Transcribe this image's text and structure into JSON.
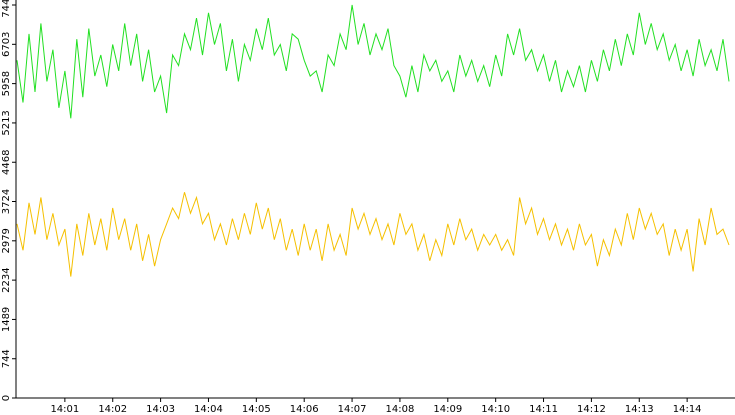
{
  "chart_data": {
    "type": "line",
    "x": [
      0,
      0.125,
      0.25,
      0.375,
      0.5,
      0.625,
      0.75,
      0.875,
      1,
      1.125,
      1.25,
      1.375,
      1.5,
      1.625,
      1.75,
      1.875,
      2,
      2.125,
      2.25,
      2.375,
      2.5,
      2.625,
      2.75,
      2.875,
      3,
      3.125,
      3.25,
      3.375,
      3.5,
      3.625,
      3.75,
      3.875,
      4,
      4.125,
      4.25,
      4.375,
      4.5,
      4.625,
      4.75,
      4.875,
      5,
      5.125,
      5.25,
      5.375,
      5.5,
      5.625,
      5.75,
      5.875,
      6,
      6.125,
      6.25,
      6.375,
      6.5,
      6.625,
      6.75,
      6.875,
      7,
      7.125,
      7.25,
      7.375,
      7.5,
      7.625,
      7.75,
      7.875,
      8,
      8.125,
      8.25,
      8.375,
      8.5,
      8.625,
      8.75,
      8.875,
      9,
      9.125,
      9.25,
      9.375,
      9.5,
      9.625,
      9.75,
      9.875,
      10,
      10.125,
      10.25,
      10.375,
      10.5,
      10.625,
      10.75,
      10.875,
      11,
      11.125,
      11.25,
      11.375,
      11.5,
      11.625,
      11.75,
      11.875,
      12,
      12.125,
      12.25,
      12.375,
      12.5,
      12.625,
      12.75,
      12.875,
      13,
      13.125,
      13.25,
      13.375,
      13.5,
      13.625,
      13.75,
      13.875,
      14,
      14.125,
      14.25,
      14.375,
      14.5,
      14.625,
      14.75,
      14.875
    ],
    "series": [
      {
        "color": "#22e022",
        "values": [
          6400,
          5600,
          6900,
          5800,
          7100,
          6000,
          6600,
          5500,
          6200,
          5300,
          6800,
          5700,
          7000,
          6100,
          6500,
          5900,
          6700,
          6200,
          7100,
          6300,
          6900,
          6000,
          6600,
          5800,
          6100,
          5400,
          6500,
          6300,
          6900,
          6600,
          7200,
          6500,
          7300,
          6700,
          7100,
          6200,
          6800,
          6000,
          6700,
          6400,
          7000,
          6600,
          7200,
          6500,
          6700,
          6200,
          6900,
          6800,
          6400,
          6100,
          6200,
          5800,
          6500,
          6300,
          6900,
          6600,
          7448,
          6700,
          7100,
          6500,
          6900,
          6600,
          7000,
          6300,
          6100,
          5700,
          6300,
          5800,
          6500,
          6200,
          6400,
          6000,
          6200,
          5800,
          6500,
          6100,
          6400,
          6000,
          6300,
          5900,
          6500,
          6100,
          6900,
          6500,
          7000,
          6400,
          6600,
          6200,
          6500,
          6000,
          6400,
          5800,
          6200,
          5900,
          6300,
          5800,
          6400,
          6000,
          6600,
          6200,
          6800,
          6300,
          6900,
          6500,
          7300,
          6700,
          7100,
          6600,
          6900,
          6400,
          6700,
          6200,
          6600,
          6100,
          6800,
          6300,
          6600,
          6200,
          6800,
          6000
        ]
      },
      {
        "color": "#f5c000",
        "values": [
          3300,
          2800,
          3700,
          3100,
          3800,
          3000,
          3500,
          2900,
          3200,
          2300,
          3300,
          2700,
          3500,
          2900,
          3400,
          2800,
          3600,
          3000,
          3400,
          2800,
          3300,
          2600,
          3100,
          2500,
          3000,
          3300,
          3600,
          3400,
          3900,
          3500,
          3800,
          3300,
          3500,
          3000,
          3300,
          2900,
          3400,
          3000,
          3500,
          3100,
          3700,
          3200,
          3600,
          3000,
          3400,
          2800,
          3200,
          2700,
          3300,
          2800,
          3200,
          2600,
          3300,
          2800,
          3100,
          2700,
          3600,
          3200,
          3500,
          3100,
          3400,
          3000,
          3300,
          2900,
          3500,
          3100,
          3300,
          2800,
          3100,
          2600,
          3000,
          2700,
          3300,
          2900,
          3400,
          3000,
          3200,
          2800,
          3100,
          2900,
          3100,
          2800,
          3000,
          2700,
          3800,
          3300,
          3600,
          3100,
          3400,
          3000,
          3300,
          2900,
          3200,
          2800,
          3300,
          2900,
          3100,
          2500,
          3000,
          2700,
          3200,
          2900,
          3500,
          3000,
          3600,
          3200,
          3500,
          3100,
          3300,
          2700,
          3200,
          2800,
          3200,
          2400,
          3400,
          2900,
          3600,
          3100,
          3200,
          2900
        ]
      }
    ],
    "xlim": [
      0,
      15
    ],
    "xticks": [
      {
        "value": 1,
        "label": "14:01"
      },
      {
        "value": 2,
        "label": "14:02"
      },
      {
        "value": 3,
        "label": "14:03"
      },
      {
        "value": 4,
        "label": "14:04"
      },
      {
        "value": 5,
        "label": "14:05"
      },
      {
        "value": 6,
        "label": "14:06"
      },
      {
        "value": 7,
        "label": "14:07"
      },
      {
        "value": 8,
        "label": "14:08"
      },
      {
        "value": 9,
        "label": "14:09"
      },
      {
        "value": 10,
        "label": "14:10"
      },
      {
        "value": 11,
        "label": "14:11"
      },
      {
        "value": 12,
        "label": "14:12"
      },
      {
        "value": 13,
        "label": "14:13"
      },
      {
        "value": 14,
        "label": "14:14"
      }
    ],
    "ylim": [
      0,
      7448
    ],
    "yticks": [
      0,
      744,
      1489,
      2234,
      2979,
      3724,
      4468,
      5213,
      5958,
      6703,
      7448
    ]
  }
}
